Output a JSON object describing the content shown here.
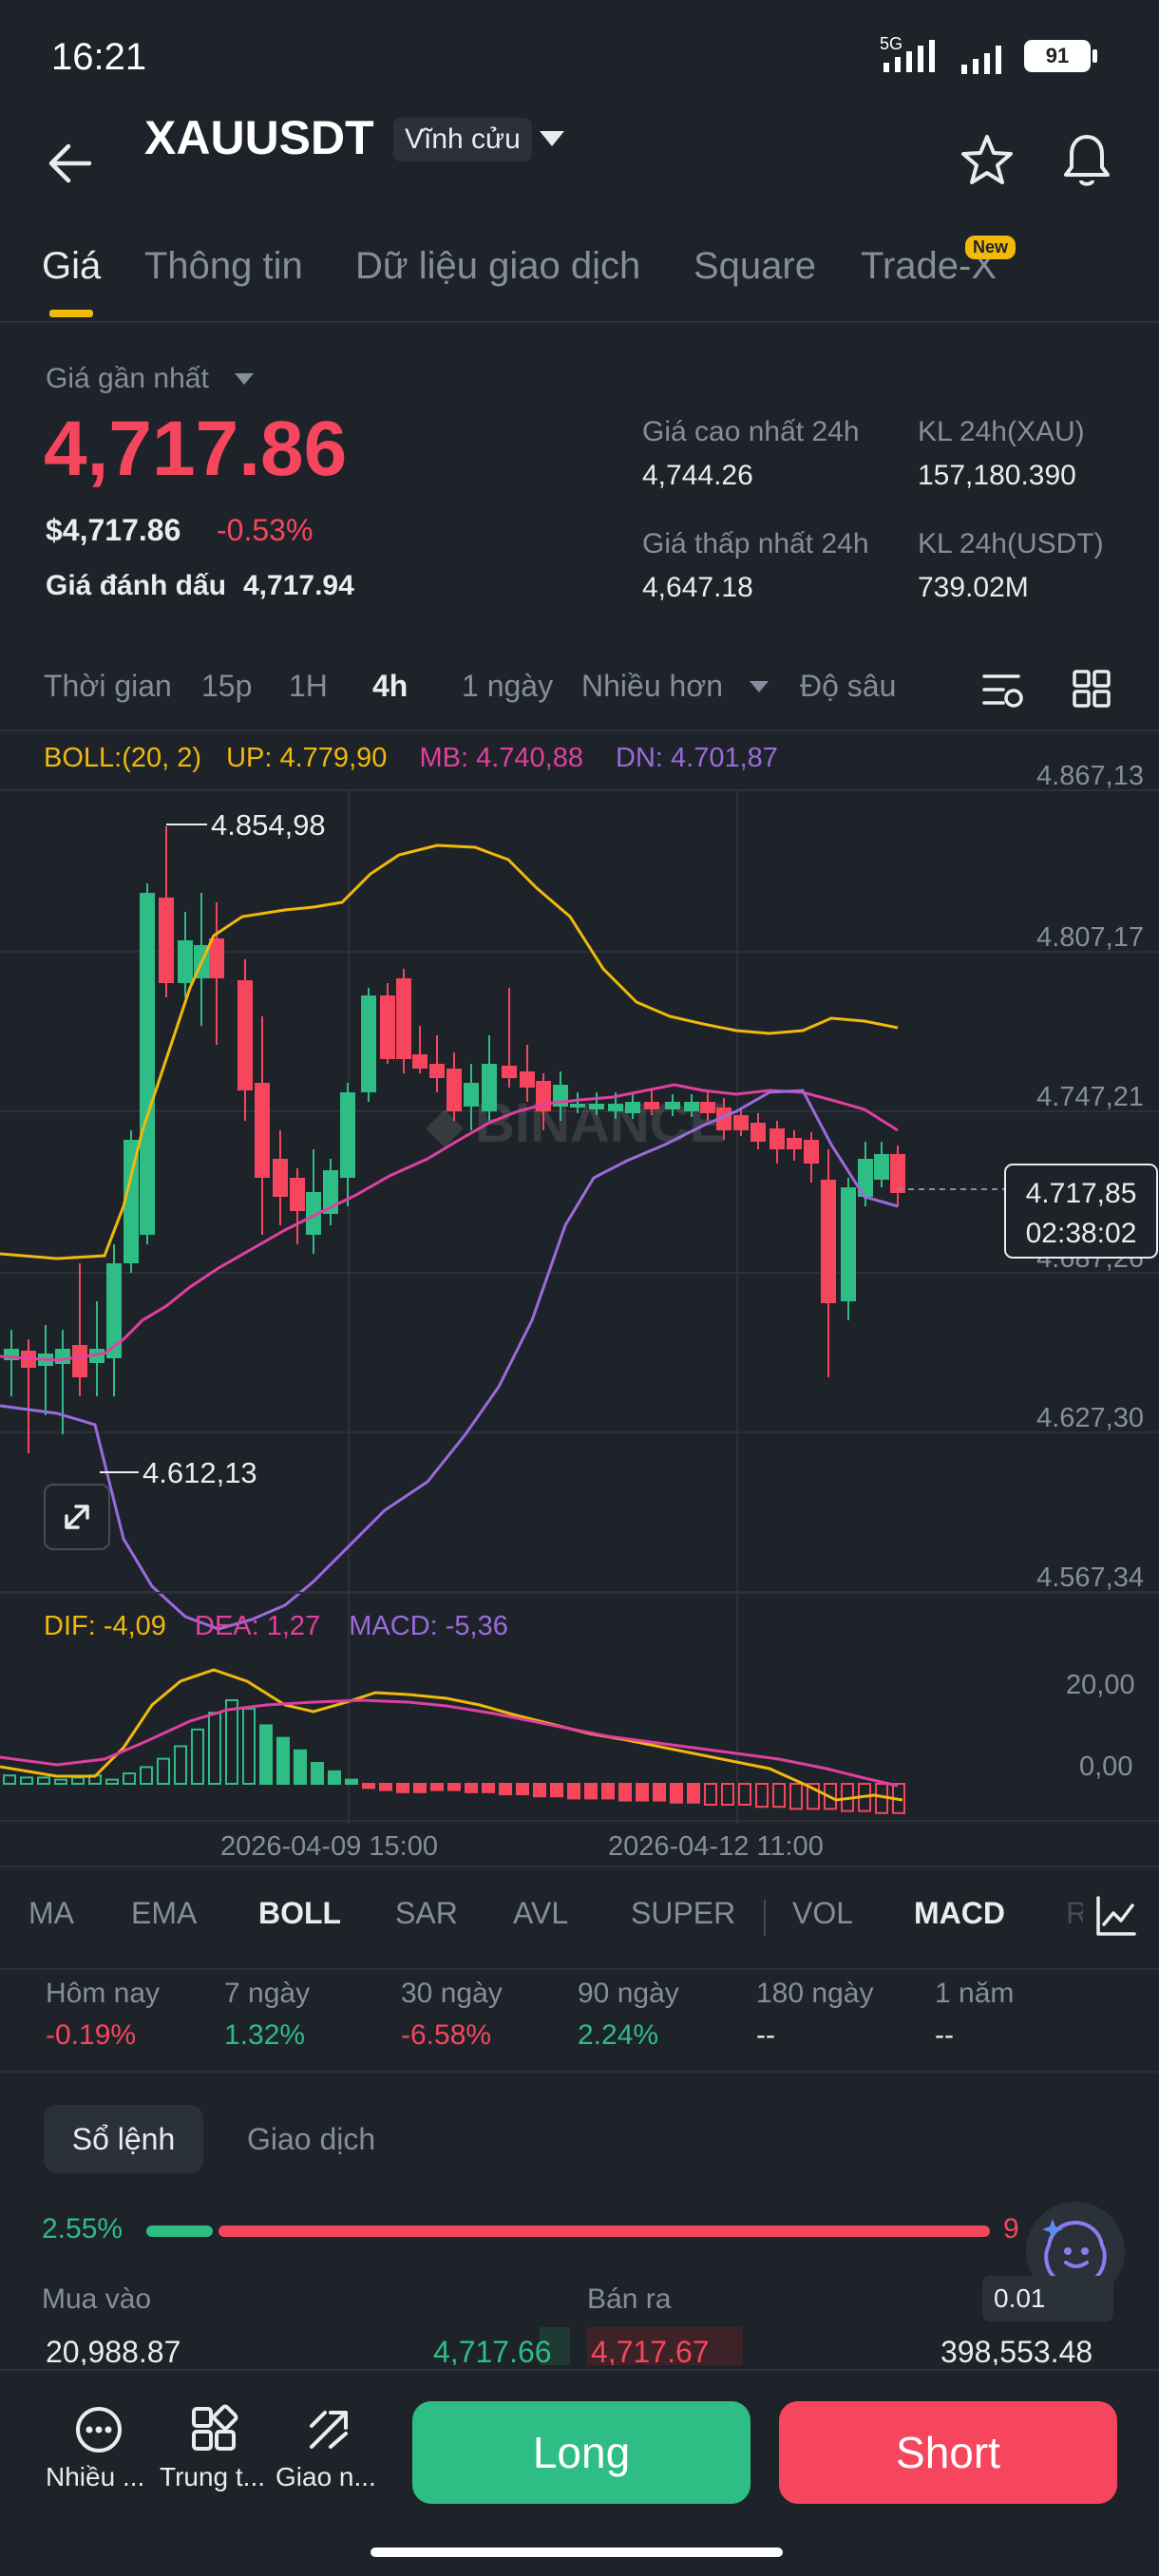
{
  "status": {
    "time": "16:21",
    "network": "5G",
    "battery": "91"
  },
  "header": {
    "symbol": "XAUUSDT",
    "contract": "Vĩnh cửu"
  },
  "tabs": [
    "Giá",
    "Thông tin",
    "Dữ liệu giao dịch",
    "Square",
    "Trade-X"
  ],
  "new_badge": "New",
  "price": {
    "label": "Giá gần nhất",
    "last": "4,717.86",
    "usd": "$4,717.86",
    "change": "-0.53%",
    "mark_label": "Giá đánh dấu",
    "mark_value": "4,717.94"
  },
  "stats": {
    "high_label": "Giá cao nhất 24h",
    "high": "4,744.26",
    "low_label": "Giá thấp nhất 24h",
    "low": "4,647.18",
    "vol_xau_label": "KL 24h(XAU)",
    "vol_xau": "157,180.390",
    "vol_usdt_label": "KL 24h(USDT)",
    "vol_usdt": "739.02M"
  },
  "intervals": {
    "time": "Thời gian",
    "i15": "15p",
    "i1h": "1H",
    "i4h": "4h",
    "i1d": "1 ngày",
    "more": "Nhiều hơn",
    "depth": "Độ sâu"
  },
  "boll": {
    "label": "BOLL:(20, 2)",
    "up": "UP: 4.779,90",
    "mb": "MB: 4.740,88",
    "dn": "DN: 4.701,87"
  },
  "price_axis": [
    "4.867,13",
    "4.807,17",
    "4.747,21",
    "4.687,26",
    "4.627,30",
    "4.567,34"
  ],
  "annotations": {
    "high": "4.854,98",
    "low": "4.612,13",
    "current": "4.717,85",
    "countdown": "02:38:02"
  },
  "watermark": "BINANCE",
  "macd": {
    "dif": "DIF: -4,09",
    "dea": "DEA: 1,27",
    "macd": "MACD: -5,36",
    "axis_top": "20,00",
    "axis_mid": "0,00"
  },
  "dates": [
    "2026-04-09 15:00",
    "2026-04-12 11:00"
  ],
  "indicators": [
    "MA",
    "EMA",
    "BOLL",
    "SAR",
    "AVL",
    "SUPER",
    "VOL",
    "MACD",
    "R"
  ],
  "performance": [
    {
      "label": "Hôm nay",
      "value": "-0.19%"
    },
    {
      "label": "7 ngày",
      "value": "1.32%"
    },
    {
      "label": "30 ngày",
      "value": "-6.58%"
    },
    {
      "label": "90 ngày",
      "value": "2.24%"
    },
    {
      "label": "180 ngày",
      "value": "--"
    },
    {
      "label": "1 năm",
      "value": "--"
    }
  ],
  "book_tabs": [
    "Sổ lệnh",
    "Giao dịch"
  ],
  "ratio": {
    "buy": "2.55%",
    "sell": "9"
  },
  "book": {
    "buy_label": "Mua vào",
    "sell_label": "Bán ra",
    "step": "0.01",
    "buy_qty": "20,988.87",
    "buy_price": "4,717.66",
    "sell_price": "4,717.67",
    "sell_qty": "398,553.48"
  },
  "bottom": {
    "more": "Nhiều ...",
    "center": "Trung t...",
    "trade": "Giao n...",
    "long": "Long",
    "short": "Short"
  },
  "colors": {
    "up": "#2ebd85",
    "down": "#f6465d",
    "accent": "#f0b90b",
    "bg": "#1e2329"
  }
}
